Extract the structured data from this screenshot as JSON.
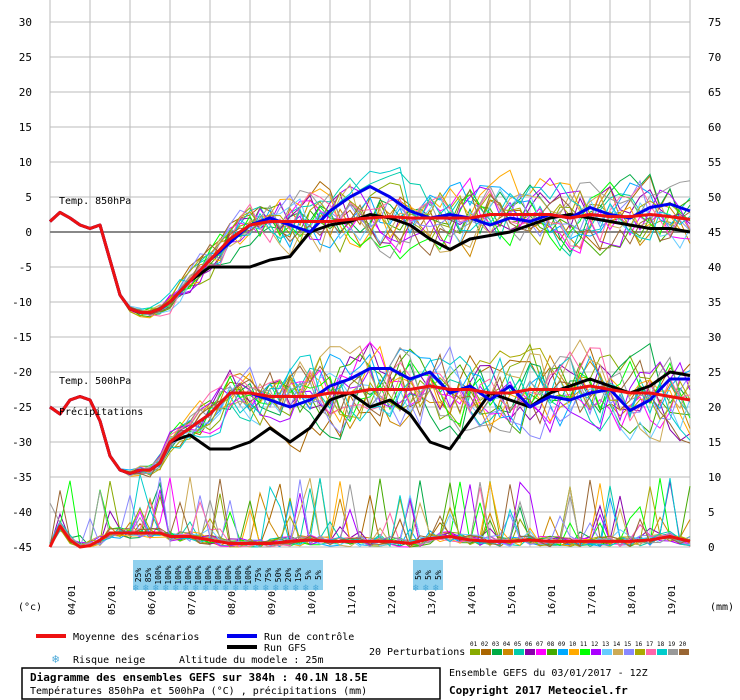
{
  "chart_data": {
    "type": "line",
    "title": "Diagramme des ensembles GEFS sur 384h : 40.1N 18.5E",
    "subtitle": "Températures 850hPa et 500hPa (°C) , précipitations (mm)",
    "left_axis": {
      "label": "(°c)",
      "ticks": [
        30,
        25,
        20,
        15,
        10,
        5,
        0,
        -5,
        -10,
        -15,
        -20,
        -25,
        -30,
        -35,
        -40,
        -45
      ],
      "ylim": [
        -45,
        30
      ]
    },
    "right_axis": {
      "label": "(mm)",
      "ticks": [
        75,
        70,
        65,
        60,
        55,
        50,
        45,
        40,
        35,
        30,
        25,
        20,
        15,
        10,
        5,
        0
      ],
      "ylim": [
        0,
        75
      ]
    },
    "x_ticks": [
      "04/01",
      "05/01",
      "06/01",
      "07/01",
      "08/01",
      "09/01",
      "10/01",
      "11/01",
      "12/01",
      "13/01",
      "14/01",
      "15/01",
      "16/01",
      "17/01",
      "18/01",
      "19/01"
    ],
    "grid": true,
    "panel_labels": {
      "t850": "Temp. 850hPa",
      "t500": "Temp. 500hPa",
      "precip": "Précipitations"
    },
    "series": [
      {
        "name": "Moyenne des scénarios",
        "color": "#ee1111",
        "panel": "t850",
        "x": [
          0,
          0.25,
          0.5,
          0.75,
          1,
          1.25,
          1.5,
          1.75,
          2,
          2.25,
          2.5,
          2.75,
          3,
          3.5,
          4,
          4.5,
          5,
          5.5,
          6,
          6.5,
          7,
          7.5,
          8,
          8.5,
          9,
          9.5,
          10,
          10.5,
          11,
          11.5,
          12,
          12.5,
          13,
          13.5,
          14,
          14.5,
          15,
          15.5,
          16
        ],
        "values": [
          1.5,
          2.8,
          2,
          1,
          0.5,
          1,
          -4,
          -9,
          -11,
          -11.5,
          -11.5,
          -11,
          -10,
          -7,
          -4,
          -1,
          1,
          1.5,
          1.5,
          1.5,
          1.5,
          1.8,
          2,
          2.2,
          2,
          2,
          2,
          2,
          2.5,
          2.5,
          2.5,
          2.5,
          2,
          2.5,
          2.2,
          2.2,
          2.5,
          2.2,
          1.8
        ]
      },
      {
        "name": "Run de contrôle",
        "color": "#0000ee",
        "panel": "t850",
        "x": [
          0,
          0.25,
          0.5,
          0.75,
          1,
          1.25,
          1.5,
          1.75,
          2,
          2.25,
          2.5,
          2.75,
          3,
          3.5,
          4,
          4.5,
          5,
          5.5,
          6,
          6.5,
          7,
          7.5,
          8,
          8.5,
          9,
          9.5,
          10,
          10.5,
          11,
          11.5,
          12,
          12.5,
          13,
          13.5,
          14,
          14.5,
          15,
          15.5,
          16
        ],
        "values": [
          1.5,
          2.8,
          2,
          1,
          0.5,
          1,
          -4,
          -9,
          -11,
          -11.5,
          -11.5,
          -11,
          -10,
          -7,
          -4,
          -1.5,
          1,
          2,
          1,
          0,
          3,
          5,
          6.5,
          5,
          3,
          2,
          2.5,
          2,
          1,
          2,
          1.5,
          2.5,
          2,
          3.5,
          2.5,
          2,
          3.5,
          4,
          3
        ]
      },
      {
        "name": "Run GFS",
        "color": "#000000",
        "panel": "t850",
        "x": [
          0,
          0.25,
          0.5,
          0.75,
          1,
          1.25,
          1.5,
          1.75,
          2,
          2.25,
          2.5,
          2.75,
          3,
          3.5,
          4,
          4.5,
          5,
          5.5,
          6,
          6.5,
          7,
          7.5,
          8,
          8.5,
          9,
          9.5,
          10,
          10.5,
          11,
          11.5,
          12,
          12.5,
          13,
          13.5,
          14,
          14.5,
          15,
          15.5,
          16
        ],
        "values": [
          1.5,
          2.8,
          2,
          1,
          0.5,
          1,
          -4,
          -9,
          -11,
          -11.5,
          -11.5,
          -11,
          -10,
          -7,
          -5,
          -5,
          -5,
          -4,
          -3.5,
          0,
          1,
          1.5,
          2.5,
          2,
          1,
          -1,
          -2.5,
          -1,
          -0.5,
          0,
          1,
          2,
          2.5,
          2,
          1.5,
          1,
          0.5,
          0.5,
          0
        ]
      },
      {
        "name": "Moyenne des scénarios",
        "color": "#ee1111",
        "panel": "t500",
        "x": [
          0,
          0.25,
          0.5,
          0.75,
          1,
          1.25,
          1.5,
          1.75,
          2,
          2.25,
          2.5,
          2.75,
          3,
          3.5,
          4,
          4.5,
          5,
          5.5,
          6,
          6.5,
          7,
          7.5,
          8,
          8.5,
          9,
          9.5,
          10,
          10.5,
          11,
          11.5,
          12,
          12.5,
          13,
          13.5,
          14,
          14.5,
          15,
          15.5,
          16
        ],
        "values": [
          -25,
          -26,
          -24,
          -23.5,
          -24,
          -27,
          -32,
          -34,
          -34.5,
          -34,
          -34,
          -33,
          -30,
          -28,
          -26,
          -23,
          -23,
          -23.5,
          -23.5,
          -23.5,
          -23,
          -23,
          -22.5,
          -22.5,
          -22.5,
          -22,
          -22.5,
          -22.5,
          -23,
          -23,
          -22.5,
          -22.5,
          -22.5,
          -22,
          -22.5,
          -23,
          -23,
          -23.5,
          -24
        ]
      },
      {
        "name": "Run de contrôle",
        "color": "#0000ee",
        "panel": "t500",
        "x": [
          0,
          0.25,
          0.5,
          0.75,
          1,
          1.25,
          1.5,
          1.75,
          2,
          2.25,
          2.5,
          2.75,
          3,
          3.5,
          4,
          4.5,
          5,
          5.5,
          6,
          6.5,
          7,
          7.5,
          8,
          8.5,
          9,
          9.5,
          10,
          10.5,
          11,
          11.5,
          12,
          12.5,
          13,
          13.5,
          14,
          14.5,
          15,
          15.5,
          16
        ],
        "values": [
          -25,
          -26,
          -24,
          -23.5,
          -24,
          -27,
          -32,
          -34,
          -34.5,
          -34,
          -34,
          -33,
          -30,
          -28,
          -26,
          -23,
          -23,
          -24,
          -25,
          -24,
          -22,
          -21,
          -19.5,
          -19.5,
          -21,
          -20,
          -23,
          -22,
          -24,
          -22,
          -25,
          -23.5,
          -24,
          -23,
          -22.5,
          -25.5,
          -24,
          -21,
          -21
        ]
      },
      {
        "name": "Run GFS",
        "color": "#000000",
        "panel": "t500",
        "x": [
          0,
          0.25,
          0.5,
          0.75,
          1,
          1.25,
          1.5,
          1.75,
          2,
          2.25,
          2.5,
          2.75,
          3,
          3.5,
          4,
          4.5,
          5,
          5.5,
          6,
          6.5,
          7,
          7.5,
          8,
          8.5,
          9,
          9.5,
          10,
          10.5,
          11,
          11.5,
          12,
          12.5,
          13,
          13.5,
          14,
          14.5,
          15,
          15.5,
          16
        ],
        "values": [
          -25,
          -26,
          -24,
          -23.5,
          -24,
          -27,
          -32,
          -34,
          -34.5,
          -34,
          -34,
          -33,
          -30,
          -29,
          -31,
          -31,
          -30,
          -28,
          -30,
          -28,
          -24,
          -23,
          -25,
          -24,
          -26,
          -30,
          -31,
          -27,
          -23,
          -24,
          -25,
          -23,
          -22,
          -21,
          -22,
          -23,
          -22,
          -20,
          -20.5
        ]
      },
      {
        "name": "Moyenne des scénarios",
        "color": "#ee1111",
        "panel": "precip",
        "x": [
          0,
          0.25,
          0.5,
          0.75,
          1,
          1.25,
          1.5,
          1.75,
          2,
          2.25,
          2.5,
          2.75,
          3,
          3.5,
          4,
          4.5,
          5,
          5.5,
          6,
          6.5,
          7,
          7.5,
          8,
          8.5,
          9,
          9.5,
          10,
          10.5,
          11,
          11.5,
          12,
          12.5,
          13,
          13.5,
          14,
          14.5,
          15,
          15.5,
          16
        ],
        "values": [
          0,
          3,
          1,
          0,
          0.2,
          1,
          2,
          2,
          2,
          2,
          2,
          2,
          1.5,
          1.5,
          1,
          0.5,
          0.5,
          0.5,
          0.8,
          1,
          0.8,
          0.8,
          0.8,
          0.8,
          0.5,
          1.2,
          1.5,
          1,
          0.8,
          0.8,
          1,
          0.8,
          0.8,
          0.8,
          0.8,
          0.8,
          1,
          1.5,
          0.8
        ]
      }
    ],
    "perturbations": {
      "label": "20 Perturbations",
      "count": 20,
      "ids": [
        "01",
        "02",
        "03",
        "04",
        "05",
        "06",
        "07",
        "08",
        "09",
        "10",
        "11",
        "12",
        "13",
        "14",
        "15",
        "16",
        "17",
        "18",
        "19",
        "20"
      ],
      "colors": [
        "#88aa00",
        "#aa6600",
        "#00aa44",
        "#cc8800",
        "#00ccaa",
        "#8800aa",
        "#ff00ff",
        "#44aa00",
        "#00aaff",
        "#ffaa00",
        "#00ff00",
        "#aa00ff",
        "#66ccff",
        "#ccaa55",
        "#8888ff",
        "#aaaa00",
        "#ff66aa",
        "#00cccc",
        "#999999",
        "#996633"
      ]
    },
    "snow_risk": {
      "label": "Risque neige",
      "entries": [
        {
          "x": 2.2,
          "pct": "25%"
        },
        {
          "x": 2.45,
          "pct": "85%"
        },
        {
          "x": 2.7,
          "pct": "100%"
        },
        {
          "x": 2.95,
          "pct": "100%"
        },
        {
          "x": 3.2,
          "pct": "100%"
        },
        {
          "x": 3.45,
          "pct": "100%"
        },
        {
          "x": 3.7,
          "pct": "100%"
        },
        {
          "x": 3.95,
          "pct": "100%"
        },
        {
          "x": 4.2,
          "pct": "100%"
        },
        {
          "x": 4.45,
          "pct": "100%"
        },
        {
          "x": 4.7,
          "pct": "100%"
        },
        {
          "x": 4.95,
          "pct": "100%"
        },
        {
          "x": 5.2,
          "pct": "75%"
        },
        {
          "x": 5.45,
          "pct": "75%"
        },
        {
          "x": 5.7,
          "pct": "50%"
        },
        {
          "x": 5.95,
          "pct": "20%"
        },
        {
          "x": 6.2,
          "pct": "15%"
        },
        {
          "x": 6.45,
          "pct": "5%"
        },
        {
          "x": 6.7,
          "pct": "5%"
        },
        {
          "x": 9.2,
          "pct": "5%"
        },
        {
          "x": 9.45,
          "pct": "5%"
        },
        {
          "x": 9.7,
          "pct": "5%"
        }
      ]
    }
  },
  "footer": {
    "legend_mean": "Moyenne des scénarios",
    "legend_control": "Run de contrôle",
    "legend_gfs": "Run GFS",
    "legend_snow": "Risque neige",
    "altitude": "Altitude du modele : 25m",
    "perturbations": "20 Perturbations",
    "title_line1": "Diagramme des ensembles GEFS sur 384h : 40.1N 18.5E",
    "title_line2": "Températures 850hPa et 500hPa (°C) , précipitations (mm)",
    "ensemble": "Ensemble GEFS du 03/01/2017 - 12Z",
    "copyright": "Copyright 2017 Meteociel.fr"
  },
  "colors": {
    "mean": "#ee1111",
    "control": "#0000ee",
    "gfs": "#000000",
    "grid": "#bbbbbb",
    "snow": "#8fd0ee"
  }
}
